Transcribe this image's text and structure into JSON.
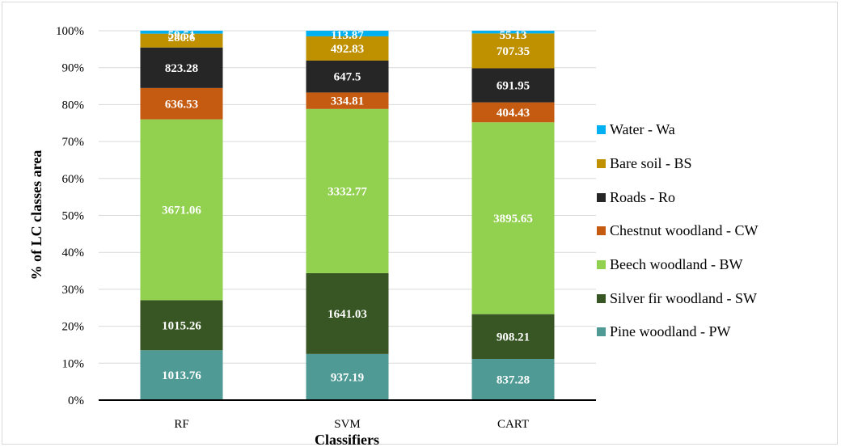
{
  "chart_data": {
    "type": "bar",
    "stacked": "percent",
    "title": "",
    "xlabel": "Classifiers",
    "ylabel": "% of LC classes area",
    "ylim": [
      0,
      100
    ],
    "yticks": [
      "0%",
      "10%",
      "20%",
      "30%",
      "40%",
      "50%",
      "60%",
      "70%",
      "80%",
      "90%",
      "100%"
    ],
    "grid": true,
    "legend_position": "right",
    "categories": [
      "RF",
      "SVM",
      "CART"
    ],
    "series": [
      {
        "name": "Pine woodland - PW",
        "color": "#4f9a94",
        "values": [
          1013.76,
          937.19,
          837.28
        ]
      },
      {
        "name": "Silver fir woodland - SW",
        "color": "#375623",
        "values": [
          1015.26,
          1641.03,
          908.21
        ]
      },
      {
        "name": "Beech woodland - BW",
        "color": "#92d050",
        "values": [
          3671.06,
          3332.77,
          3895.65
        ]
      },
      {
        "name": "Chestnut woodland - CW",
        "color": "#c55a11",
        "values": [
          636.53,
          334.81,
          404.43
        ]
      },
      {
        "name": "Roads - Ro",
        "color": "#262626",
        "values": [
          823.28,
          647.5,
          691.95
        ]
      },
      {
        "name": "Bare soil - BS",
        "color": "#bf9000",
        "values": [
          280.6,
          492.83,
          707.35
        ]
      },
      {
        "name": "Water - Wa",
        "color": "#00b0f0",
        "values": [
          59.51,
          113.87,
          55.13
        ]
      }
    ],
    "legend_order": [
      "Water - Wa",
      "Bare soil - BS",
      "Roads - Ro",
      "Chestnut woodland - CW",
      "Beech woodland - BW",
      "Silver fir woodland - SW",
      "Pine woodland - PW"
    ]
  }
}
